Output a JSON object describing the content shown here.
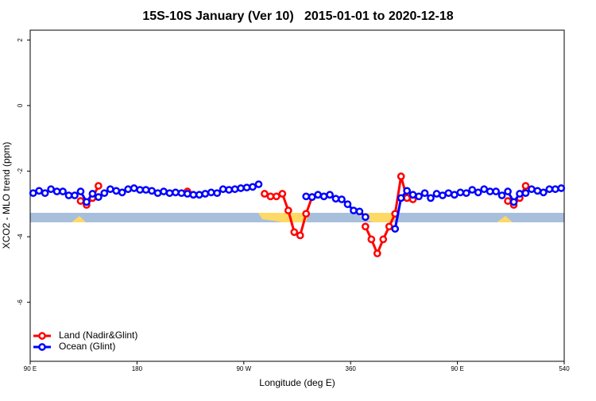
{
  "chart_data": {
    "type": "line",
    "title": "15S-10S January (Ver 10)   2015-01-01 to 2020-12-18",
    "x_label": "Longitude (deg E)",
    "y_label": "XCO2 - MLO trend (ppm)",
    "x": [
      92.5,
      97.5,
      102.5,
      107.5,
      112.5,
      117.5,
      122.5,
      127.5,
      132.5,
      137.5,
      142.5,
      147.5,
      152.5,
      157.5,
      162.5,
      167.5,
      172.5,
      177.5,
      182.5,
      187.5,
      192.5,
      197.5,
      202.5,
      207.5,
      212.5,
      217.5,
      222.5,
      227.5,
      232.5,
      237.5,
      242.5,
      247.5,
      252.5,
      257.5,
      262.5,
      267.5,
      272.5,
      277.5,
      282.5,
      287.5,
      292.5,
      297.5,
      302.5,
      307.5,
      312.5,
      317.5,
      322.5,
      327.5,
      332.5,
      337.5,
      342.5,
      347.5,
      352.5,
      357.5,
      362.5,
      367.5,
      372.5,
      377.5,
      382.5,
      387.5,
      392.5,
      397.5,
      402.5,
      407.5,
      412.5,
      417.5,
      422.5,
      427.5,
      432.5,
      437.5,
      442.5,
      447.5,
      452.5,
      457.5,
      462.5,
      467.5,
      472.5,
      477.5,
      482.5,
      487.5,
      492.5,
      497.5,
      502.5,
      507.5,
      512.5,
      517.5,
      522.5,
      527.5,
      532.5,
      537.5
    ],
    "series": [
      {
        "name": "Land (Nadir&Glint)",
        "color": "#ff0000",
        "values": [
          null,
          null,
          null,
          null,
          null,
          null,
          null,
          null,
          -2.91,
          -3.03,
          -2.82,
          -2.45,
          null,
          null,
          null,
          null,
          null,
          null,
          null,
          null,
          null,
          null,
          null,
          null,
          null,
          null,
          -2.62,
          null,
          null,
          null,
          null,
          null,
          null,
          null,
          null,
          null,
          null,
          null,
          null,
          -2.69,
          -2.77,
          -2.77,
          -2.69,
          -3.2,
          -3.86,
          -3.96,
          -3.3,
          -2.79,
          null,
          null,
          null,
          null,
          null,
          null,
          null,
          null,
          -3.69,
          -4.08,
          -4.51,
          -4.08,
          -3.69,
          -3.3,
          -2.16,
          -2.82,
          -2.86,
          null,
          null,
          null,
          null,
          null,
          null,
          null,
          null,
          null,
          null,
          null,
          null,
          null,
          null,
          null,
          -2.91,
          -3.03,
          -2.82,
          -2.45,
          null,
          null,
          null,
          null,
          null,
          null
        ]
      },
      {
        "name": "Ocean (Glint)",
        "color": "#0000ff",
        "values": [
          -2.67,
          -2.6,
          -2.67,
          -2.55,
          -2.62,
          -2.62,
          -2.74,
          -2.74,
          -2.62,
          -2.94,
          -2.69,
          -2.79,
          -2.67,
          -2.55,
          -2.6,
          -2.65,
          -2.55,
          -2.52,
          -2.57,
          -2.57,
          -2.6,
          -2.67,
          -2.62,
          -2.67,
          -2.65,
          -2.67,
          -2.69,
          -2.72,
          -2.72,
          -2.69,
          -2.65,
          -2.67,
          -2.55,
          -2.57,
          -2.55,
          -2.52,
          -2.5,
          -2.48,
          -2.4,
          null,
          null,
          null,
          null,
          null,
          null,
          null,
          -2.77,
          -2.79,
          -2.72,
          -2.77,
          -2.72,
          -2.84,
          -2.86,
          -3.01,
          -3.2,
          -3.23,
          -3.4,
          null,
          null,
          null,
          null,
          -3.76,
          -2.82,
          -2.6,
          -2.72,
          -2.77,
          -2.67,
          -2.82,
          -2.69,
          -2.74,
          -2.67,
          -2.72,
          -2.65,
          -2.67,
          -2.57,
          -2.65,
          -2.55,
          -2.62,
          -2.62,
          -2.74,
          -2.62,
          -2.94,
          -2.69,
          -2.67,
          -2.55,
          -2.6,
          -2.65,
          -2.55,
          -2.55,
          -2.52
        ]
      }
    ],
    "xlim": [
      90,
      540
    ],
    "xticks": [
      {
        "value": 90,
        "label": "90 E"
      },
      180,
      {
        "value": 270,
        "label": "90 W"
      },
      360,
      {
        "value": 450,
        "label": "90 E"
      },
      540
    ],
    "ylim": [
      -7.8,
      2.3
    ],
    "yticks": [
      2,
      0,
      -2,
      -4,
      -6
    ],
    "legend": "bottom-left"
  }
}
